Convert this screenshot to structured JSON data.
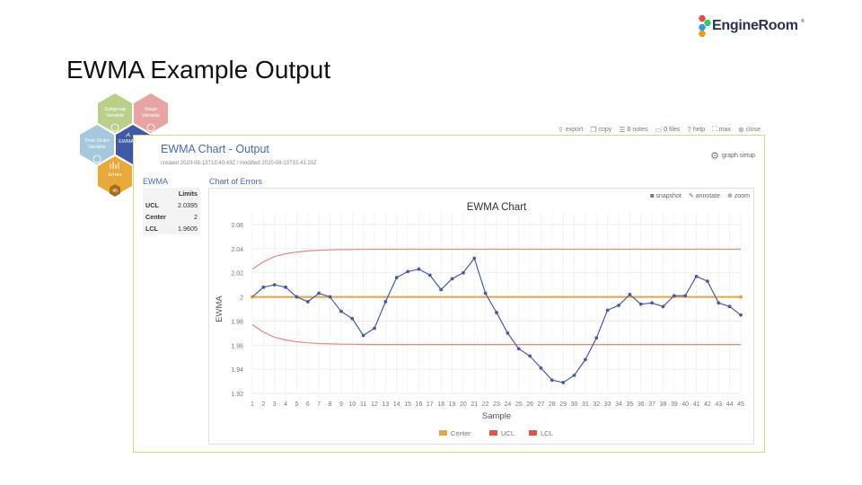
{
  "slide": {
    "title": "EWMA Example Output"
  },
  "brand": {
    "name": "EngineRoom",
    "tm": "®"
  },
  "hexes": {
    "subgroup": {
      "label_line1": "Subgroup",
      "label_line2": "Variable",
      "color": "#bccf8a"
    },
    "stage": {
      "label_line1": "Stage",
      "label_line2": "Variable",
      "color": "#e8a4a0"
    },
    "time_order": {
      "label_line1": "Time Order",
      "label_line2": "Variable",
      "color": "#a6c8dc"
    },
    "ewma_chart": {
      "label": "EWMA Chart",
      "color": "#3f59a5"
    },
    "errors": {
      "label": "Errors",
      "count": "45",
      "color": "#e9a93a"
    }
  },
  "toolbar": {
    "export": "export",
    "copy": "copy",
    "notes_count": "0",
    "notes": "notes",
    "files_count": "0",
    "files": "files",
    "help": "help",
    "max": "max",
    "close": "close"
  },
  "panel": {
    "title": "EWMA Chart - Output",
    "meta": "created 2020-08-13T15:40:43Z / modified 2020-08-13T15:41:20Z",
    "graph_setup": "graph setup",
    "ewma_label": "EWMA",
    "chart_of_errors": "Chart of Errors"
  },
  "limits": {
    "header": "Limits",
    "rows": [
      {
        "label": "UCL",
        "value": "2.0395"
      },
      {
        "label": "Center",
        "value": "2"
      },
      {
        "label": "LCL",
        "value": "1.9605"
      }
    ]
  },
  "chart_tools": {
    "snapshot": "snapshot",
    "annotate": "annotate",
    "zoom": "zoom"
  },
  "chart_data": {
    "type": "line",
    "title": "EWMA Chart",
    "xlabel": "Sample",
    "ylabel": "EWMA",
    "ylim": [
      1.92,
      2.06
    ],
    "yticks": [
      1.92,
      1.94,
      1.96,
      1.98,
      2,
      2.02,
      2.04,
      2.06
    ],
    "x": [
      1,
      2,
      3,
      4,
      5,
      6,
      7,
      8,
      9,
      10,
      11,
      12,
      13,
      14,
      15,
      16,
      17,
      18,
      19,
      20,
      21,
      22,
      23,
      24,
      25,
      26,
      27,
      28,
      29,
      30,
      31,
      32,
      33,
      34,
      35,
      36,
      37,
      38,
      39,
      40,
      41,
      42,
      43,
      44,
      45
    ],
    "series": [
      {
        "name": "EWMA",
        "color": "#4a5b9c",
        "values": [
          2.0,
          2.008,
          2.01,
          2.008,
          2.0,
          1.996,
          2.003,
          2.0,
          1.988,
          1.982,
          1.968,
          1.974,
          1.996,
          2.016,
          2.021,
          2.023,
          2.018,
          2.006,
          2.015,
          2.02,
          2.032,
          2.003,
          1.987,
          1.97,
          1.957,
          1.951,
          1.941,
          1.931,
          1.929,
          1.935,
          1.948,
          1.966,
          1.989,
          1.993,
          2.002,
          1.994,
          1.995,
          1.992,
          2.001,
          2.001,
          2.017,
          2.013,
          1.995,
          1.992,
          1.985
        ]
      },
      {
        "name": "Center",
        "color": "#e0a44a",
        "constant": 2
      },
      {
        "name": "UCL",
        "color": "#e08c80",
        "values": [
          2.023,
          2.0292,
          2.0334,
          2.0358,
          2.0372,
          2.0381,
          2.0387,
          2.039,
          2.0392,
          2.0393,
          2.0394,
          2.0395,
          2.0395,
          2.0395,
          2.0395,
          2.0395,
          2.0395,
          2.0395,
          2.0395,
          2.0395,
          2.0395,
          2.0395,
          2.0395,
          2.0395,
          2.0395,
          2.0395,
          2.0395,
          2.0395,
          2.0395,
          2.0395,
          2.0395,
          2.0395,
          2.0395,
          2.0395,
          2.0395,
          2.0395,
          2.0395,
          2.0395,
          2.0395,
          2.0395,
          2.0395,
          2.0395,
          2.0395,
          2.0395,
          2.0395
        ]
      },
      {
        "name": "LCL",
        "color": "#e08c80",
        "values": [
          1.977,
          1.9708,
          1.9666,
          1.9642,
          1.9628,
          1.9619,
          1.9613,
          1.961,
          1.9608,
          1.9607,
          1.9606,
          1.9605,
          1.9605,
          1.9605,
          1.9605,
          1.9605,
          1.9605,
          1.9605,
          1.9605,
          1.9605,
          1.9605,
          1.9605,
          1.9605,
          1.9605,
          1.9605,
          1.9605,
          1.9605,
          1.9605,
          1.9605,
          1.9605,
          1.9605,
          1.9605,
          1.9605,
          1.9605,
          1.9605,
          1.9605,
          1.9605,
          1.9605,
          1.9605,
          1.9605,
          1.9605,
          1.9605,
          1.9605,
          1.9605,
          1.9605
        ]
      }
    ],
    "legend": {
      "placement": "bottom",
      "items": [
        {
          "name": "Center",
          "color": "#e0a44a"
        },
        {
          "name": "UCL",
          "color": "#d9584a"
        },
        {
          "name": "LCL",
          "color": "#d9584a"
        }
      ]
    },
    "grid": true
  }
}
